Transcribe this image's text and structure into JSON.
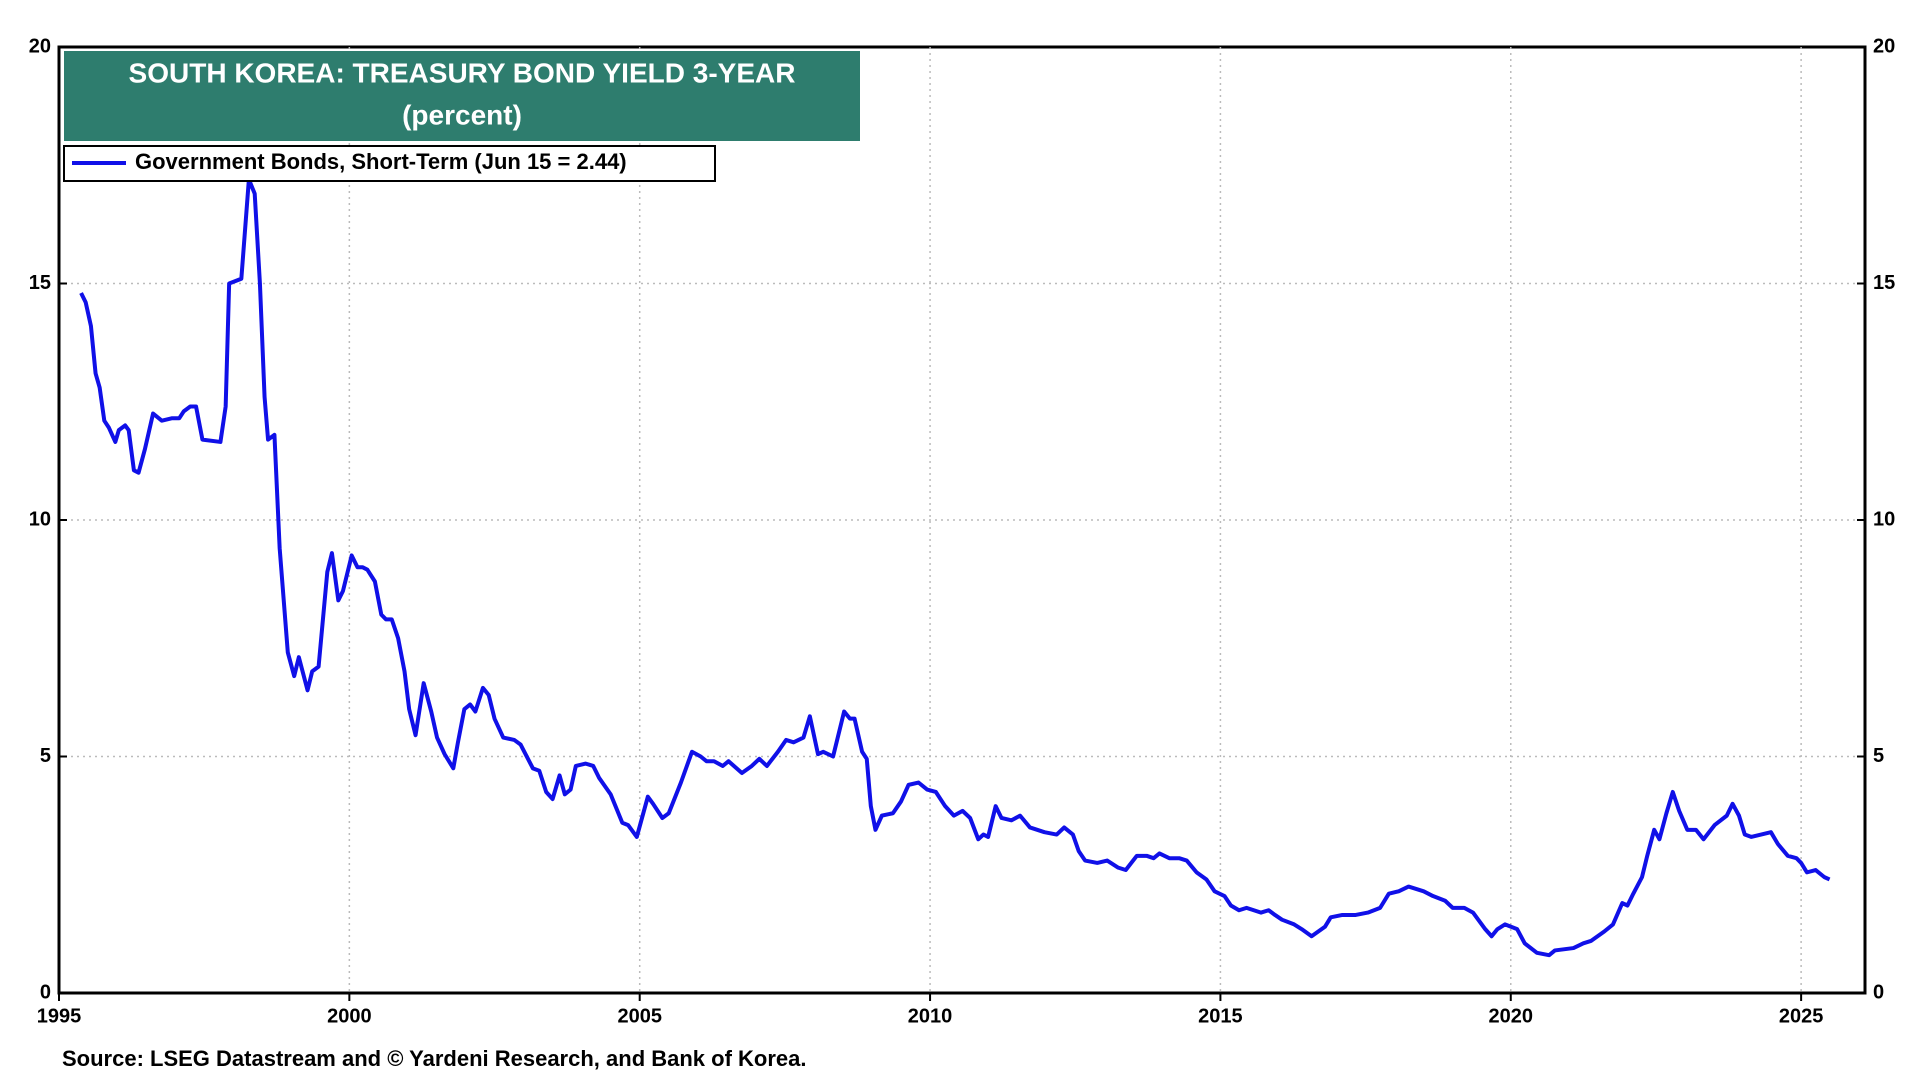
{
  "chart_data": {
    "type": "line",
    "title": "SOUTH KOREA: TREASURY BOND YIELD 3-YEAR",
    "subtitle": "(percent)",
    "source": "Source: LSEG Datastream and © Yardeni Research, and Bank of Korea.",
    "xlim": [
      1995,
      2026.1
    ],
    "xticks": [
      1995,
      2000,
      2005,
      2010,
      2015,
      2020,
      2025
    ],
    "ylim": [
      0,
      20
    ],
    "yticks": [
      0,
      5,
      10,
      15,
      20
    ],
    "grid": true,
    "legend": "top-left",
    "x": [
      1995.38,
      1995.46,
      1995.55,
      1995.63,
      1995.7,
      1995.78,
      1995.86,
      1995.97,
      1996.03,
      1996.14,
      1996.2,
      1996.29,
      1996.37,
      1996.48,
      1996.62,
      1996.77,
      1996.94,
      1997.07,
      1997.15,
      1997.26,
      1997.36,
      1997.47,
      1997.78,
      1997.87,
      1997.93,
      1998.14,
      1998.27,
      1998.37,
      1998.46,
      1998.54,
      1998.6,
      1998.71,
      1998.8,
      1998.94,
      1999.05,
      1999.13,
      1999.28,
      1999.36,
      1999.47,
      1999.62,
      1999.7,
      1999.81,
      1999.89,
      2000.04,
      2000.14,
      2000.23,
      2000.31,
      2000.44,
      2000.55,
      2000.63,
      2000.73,
      2000.84,
      2000.95,
      2001.03,
      2001.14,
      2001.28,
      2001.41,
      2001.51,
      2001.64,
      2001.79,
      2001.87,
      2001.98,
      2002.08,
      2002.17,
      2002.3,
      2002.4,
      2002.5,
      2002.65,
      2002.84,
      2002.95,
      2003.16,
      2003.27,
      2003.39,
      2003.5,
      2003.62,
      2003.71,
      2003.81,
      2003.9,
      2004.07,
      2004.2,
      2004.3,
      2004.5,
      2004.7,
      2004.8,
      2004.95,
      2005.14,
      2005.23,
      2005.39,
      2005.5,
      2005.71,
      2005.9,
      2006.05,
      2006.15,
      2006.28,
      2006.43,
      2006.53,
      2006.76,
      2006.93,
      2007.06,
      2007.19,
      2007.38,
      2007.52,
      2007.65,
      2007.82,
      2007.93,
      2008.07,
      2008.16,
      2008.33,
      2008.52,
      2008.62,
      2008.7,
      2008.83,
      2008.91,
      2008.98,
      2009.06,
      2009.17,
      2009.36,
      2009.5,
      2009.63,
      2009.8,
      2009.95,
      2010.1,
      2010.26,
      2010.41,
      2010.56,
      2010.69,
      2010.83,
      2010.92,
      2011.0,
      2011.13,
      2011.23,
      2011.4,
      2011.55,
      2011.72,
      2011.97,
      2012.18,
      2012.31,
      2012.46,
      2012.56,
      2012.67,
      2012.88,
      2013.05,
      2013.24,
      2013.37,
      2013.56,
      2013.73,
      2013.85,
      2013.95,
      2014.12,
      2014.29,
      2014.42,
      2014.59,
      2014.76,
      2014.9,
      2015.07,
      2015.18,
      2015.32,
      2015.45,
      2015.7,
      2015.83,
      2015.94,
      2016.06,
      2016.27,
      2016.4,
      2016.57,
      2016.8,
      2016.9,
      2017.1,
      2017.33,
      2017.54,
      2017.75,
      2017.9,
      2018.07,
      2018.24,
      2018.5,
      2018.66,
      2018.87,
      2019.0,
      2019.2,
      2019.35,
      2019.56,
      2019.67,
      2019.77,
      2019.9,
      2020.11,
      2020.24,
      2020.45,
      2020.66,
      2020.76,
      2021.08,
      2021.25,
      2021.38,
      2021.61,
      2021.76,
      2021.92,
      2022.01,
      2022.11,
      2022.26,
      2022.35,
      2022.47,
      2022.56,
      2022.68,
      2022.79,
      2022.9,
      2023.04,
      2023.19,
      2023.32,
      2023.51,
      2023.72,
      2023.82,
      2023.93,
      2024.03,
      2024.14,
      2024.31,
      2024.48,
      2024.6,
      2024.77,
      2024.92,
      2025.0,
      2025.1,
      2025.25,
      2025.4,
      2025.49
    ],
    "series": [
      {
        "name": "Government Bonds, Short-Term (Jun 15 = 2.44)",
        "color": "#1010e8",
        "values": [
          14.8,
          14.6,
          14.1,
          13.1,
          12.8,
          12.1,
          11.95,
          11.65,
          11.9,
          12.0,
          11.9,
          11.05,
          11.0,
          11.5,
          12.25,
          12.1,
          12.15,
          12.15,
          12.3,
          12.4,
          12.4,
          11.7,
          11.65,
          12.4,
          15.0,
          15.1,
          17.2,
          16.9,
          15.0,
          12.6,
          11.7,
          11.8,
          9.4,
          7.2,
          6.7,
          7.1,
          6.4,
          6.8,
          6.9,
          8.9,
          9.3,
          8.3,
          8.5,
          9.25,
          9.0,
          9.0,
          8.95,
          8.7,
          8.0,
          7.9,
          7.9,
          7.5,
          6.8,
          6.0,
          5.45,
          6.55,
          5.95,
          5.4,
          5.05,
          4.75,
          5.3,
          6.0,
          6.1,
          5.95,
          6.45,
          6.3,
          5.8,
          5.4,
          5.35,
          5.25,
          4.75,
          4.7,
          4.25,
          4.1,
          4.6,
          4.2,
          4.3,
          4.8,
          4.85,
          4.8,
          4.55,
          4.2,
          3.6,
          3.55,
          3.3,
          4.15,
          4.0,
          3.7,
          3.8,
          4.45,
          5.1,
          5.0,
          4.9,
          4.9,
          4.8,
          4.9,
          4.65,
          4.8,
          4.95,
          4.8,
          5.1,
          5.35,
          5.3,
          5.4,
          5.85,
          5.05,
          5.1,
          5.0,
          5.95,
          5.8,
          5.8,
          5.1,
          4.95,
          3.95,
          3.45,
          3.75,
          3.8,
          4.05,
          4.4,
          4.45,
          4.3,
          4.25,
          3.95,
          3.75,
          3.85,
          3.7,
          3.25,
          3.35,
          3.3,
          3.95,
          3.7,
          3.65,
          3.75,
          3.5,
          3.4,
          3.35,
          3.5,
          3.35,
          3.0,
          2.8,
          2.75,
          2.8,
          2.65,
          2.6,
          2.9,
          2.9,
          2.85,
          2.95,
          2.85,
          2.85,
          2.8,
          2.55,
          2.4,
          2.15,
          2.05,
          1.85,
          1.75,
          1.8,
          1.7,
          1.75,
          1.65,
          1.55,
          1.45,
          1.35,
          1.2,
          1.4,
          1.6,
          1.65,
          1.65,
          1.7,
          1.8,
          2.1,
          2.15,
          2.25,
          2.15,
          2.05,
          1.95,
          1.8,
          1.8,
          1.7,
          1.35,
          1.2,
          1.35,
          1.45,
          1.35,
          1.05,
          0.85,
          0.8,
          0.9,
          0.95,
          1.05,
          1.1,
          1.3,
          1.45,
          1.9,
          1.85,
          2.1,
          2.45,
          2.9,
          3.45,
          3.25,
          3.8,
          4.25,
          3.85,
          3.45,
          3.45,
          3.25,
          3.55,
          3.75,
          4.0,
          3.75,
          3.35,
          3.3,
          3.35,
          3.4,
          3.15,
          2.9,
          2.85,
          2.75,
          2.55,
          2.6,
          2.45,
          2.4
        ]
      }
    ]
  }
}
